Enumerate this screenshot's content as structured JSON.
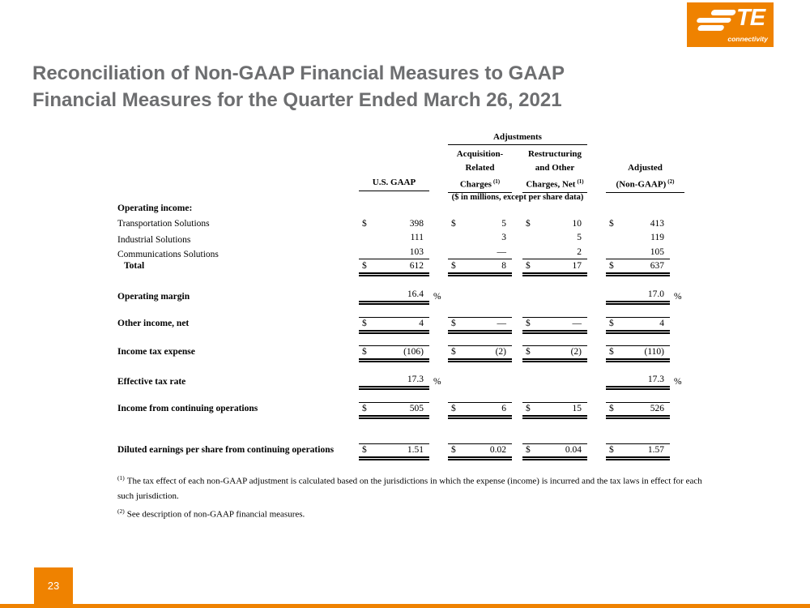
{
  "colors": {
    "orange": "#EF8200",
    "title_gray": "#6D6E70"
  },
  "logo": {
    "te": "TE",
    "tagline": "connectivity"
  },
  "title": "Reconciliation of Non-GAAP Financial Measures to GAAP Financial Measures for the Quarter Ended March 26, 2021",
  "page_number": "23",
  "table": {
    "adjustments_label": "Adjustments",
    "units_note": "($ in millions, except per share data)",
    "columns": {
      "us_gaap": "U.S. GAAP",
      "acq": {
        "l1": "Acquisition-",
        "l2": "Related",
        "l3": "Charges",
        "sup": "(1)"
      },
      "restr": {
        "l1": "Restructuring",
        "l2": "and Other",
        "l3": "Charges, Net",
        "sup": "(1)"
      },
      "adjusted": {
        "l1": "Adjusted",
        "l2": "(Non-GAAP)",
        "sup": "(2)"
      }
    },
    "rows": [
      {
        "kind": "section",
        "label": "Operating income:",
        "bold": true,
        "cells": [
          null,
          null,
          null,
          null
        ]
      },
      {
        "kind": "item",
        "label": "Transportation Solutions",
        "cells": [
          {
            "d": "$",
            "v": "398"
          },
          {
            "d": "$",
            "v": "5"
          },
          {
            "d": "$",
            "v": "10"
          },
          {
            "d": "$",
            "v": "413"
          }
        ]
      },
      {
        "kind": "item",
        "label": "Industrial Solutions",
        "cells": [
          {
            "v": "111"
          },
          {
            "v": "3"
          },
          {
            "v": "5"
          },
          {
            "v": "119"
          }
        ]
      },
      {
        "kind": "item",
        "label": "Communications Solutions",
        "rule_bottom": "single",
        "cells": [
          {
            "v": "103"
          },
          {
            "v": "—"
          },
          {
            "v": "2"
          },
          {
            "v": "105"
          }
        ]
      },
      {
        "kind": "total",
        "label": "Total",
        "bold": true,
        "indent": true,
        "rule_bottom": "double",
        "cells": [
          {
            "d": "$",
            "v": "612"
          },
          {
            "d": "$",
            "v": "8"
          },
          {
            "d": "$",
            "v": "17"
          },
          {
            "d": "$",
            "v": "637"
          }
        ]
      },
      {
        "kind": "metric",
        "label": "Operating margin",
        "bold": true,
        "pct": "%",
        "rule_bottom": "double",
        "cells": [
          {
            "v": "16.4"
          },
          null,
          null,
          {
            "v": "17.0"
          }
        ]
      },
      {
        "kind": "metric",
        "label": "Other income, net",
        "bold": true,
        "rule_top": true,
        "rule_bottom": "double",
        "cells": [
          {
            "d": "$",
            "v": "4"
          },
          {
            "d": "$",
            "v": "—"
          },
          {
            "d": "$",
            "v": "—"
          },
          {
            "d": "$",
            "v": "4"
          }
        ]
      },
      {
        "kind": "metric",
        "label": "Income tax expense",
        "bold": true,
        "rule_top": true,
        "rule_bottom": "double",
        "cells": [
          {
            "d": "$",
            "v": "(106)"
          },
          {
            "d": "$",
            "v": "(2)"
          },
          {
            "d": "$",
            "v": "(2)"
          },
          {
            "d": "$",
            "v": "(110)"
          }
        ]
      },
      {
        "kind": "metric",
        "label": "Effective tax rate",
        "bold": true,
        "pct": "%",
        "rule_bottom": "double",
        "cells": [
          {
            "v": "17.3"
          },
          null,
          null,
          {
            "v": "17.3"
          }
        ]
      },
      {
        "kind": "metric",
        "label": "Income from continuing operations",
        "bold": true,
        "rule_top": true,
        "rule_bottom": "double",
        "cells": [
          {
            "d": "$",
            "v": "505"
          },
          {
            "d": "$",
            "v": "6"
          },
          {
            "d": "$",
            "v": "15"
          },
          {
            "d": "$",
            "v": "526"
          }
        ]
      },
      {
        "kind": "metric-wide",
        "label": "Diluted earnings per share from continuing operations",
        "bold": true,
        "rule_top": true,
        "rule_bottom": "double",
        "cells": [
          {
            "d": "$",
            "v": "1.51"
          },
          {
            "d": "$",
            "v": "0.02"
          },
          {
            "d": "$",
            "v": "0.04"
          },
          {
            "d": "$",
            "v": "1.57"
          }
        ]
      }
    ]
  },
  "footnotes": [
    {
      "sup": "(1)",
      "text": "The tax effect of each non-GAAP adjustment is calculated based on the jurisdictions in which the expense (income) is incurred and the tax laws in effect for each such jurisdiction."
    },
    {
      "sup": "(2)",
      "text": "See description of non-GAAP financial measures."
    }
  ]
}
